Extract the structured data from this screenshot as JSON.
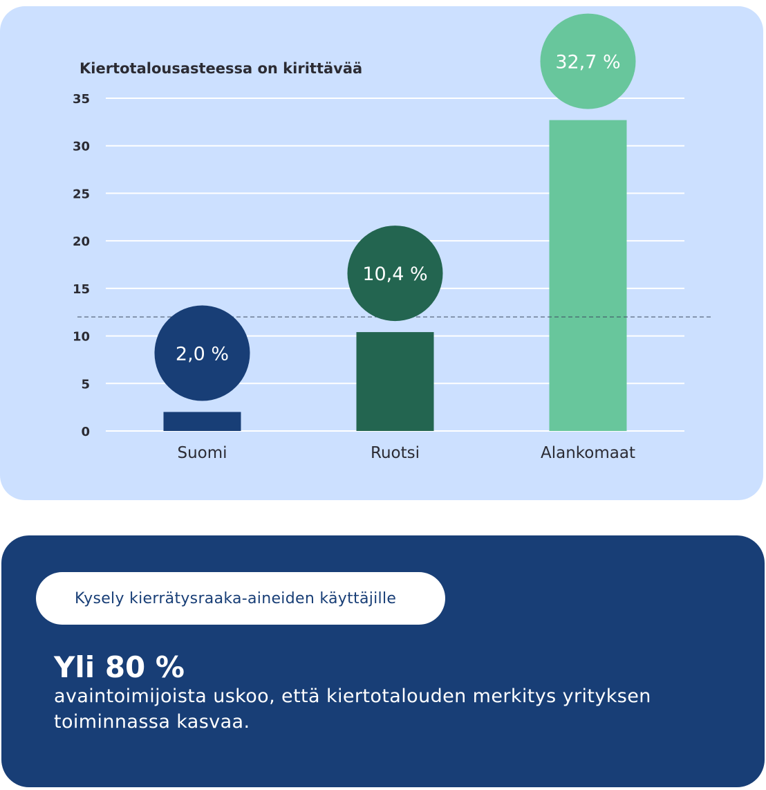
{
  "chart_data": {
    "type": "bar",
    "title": "Kiertotalousasteessa on kirittävää",
    "categories": [
      "Suomi",
      "Ruotsi",
      "Alankomaat"
    ],
    "values": [
      2.0,
      10.4,
      32.7
    ],
    "value_labels": [
      "2,0 %",
      "10,4 %",
      "32,7 %"
    ],
    "colors": [
      "#183e76",
      "#236550",
      "#68c69c"
    ],
    "ylim": [
      0,
      35
    ],
    "yticks": [
      0,
      5,
      10,
      15,
      20,
      25,
      30,
      35
    ],
    "reference_line": 12,
    "grid": true,
    "xlabel": "",
    "ylabel": ""
  },
  "survey": {
    "tag": "Kysely kierrätysraaka-aineiden käyttäjille",
    "headline": "Yli 80 %",
    "text": "avaintoimijoista uskoo, että kiertotalouden merkitys yrityksen toiminnassa kasvaa."
  }
}
